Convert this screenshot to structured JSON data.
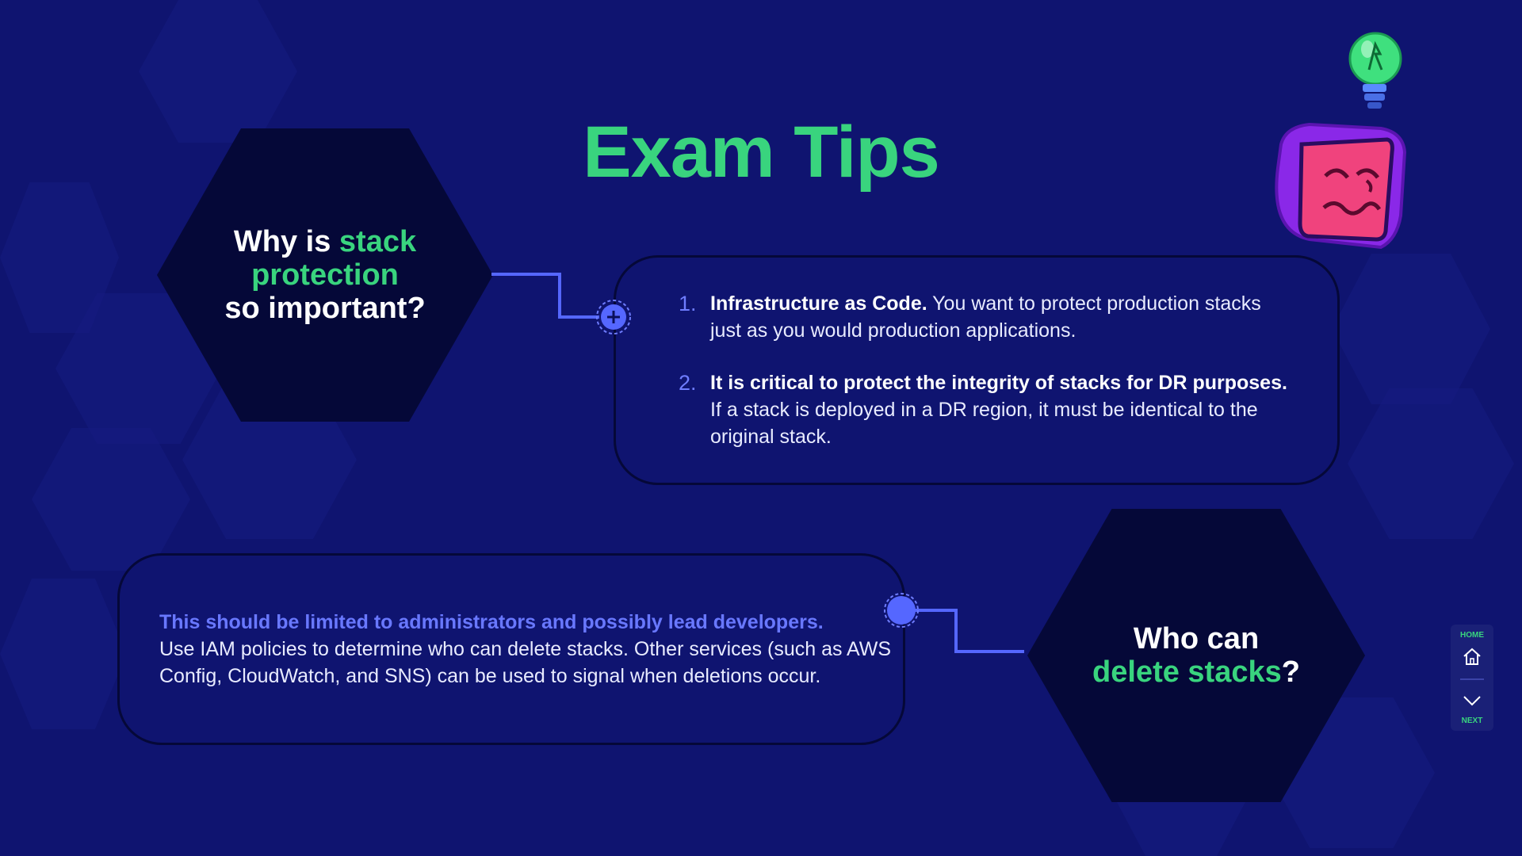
{
  "slide": {
    "title": "Exam Tips"
  },
  "question_1": {
    "line_1_prefix": "Why is ",
    "line_1_highlight": "stack",
    "line_2_highlight": "protection",
    "line_3": "so important?"
  },
  "answer_1": {
    "items": [
      {
        "number": "1.",
        "lead": "Infrastructure as Code.",
        "text": " You want to protect production stacks just as you would production applications."
      },
      {
        "number": "2.",
        "lead": "It is critical to protect the integrity of stacks for DR purposes.",
        "text": " If a stack is deployed in a DR region, it must be identical to the original stack."
      }
    ]
  },
  "question_2": {
    "line_1": "Who can",
    "line_2_highlight": "delete stacks",
    "line_2_suffix": "?"
  },
  "answer_2": {
    "lead": "This should be limited to administrators and possibly lead developers.",
    "text": "Use IAM policies to determine who can delete stacks. Other services (such as AWS Config, CloudWatch, and SNS) can be used to signal when deletions occur."
  },
  "nav": {
    "home_label": "HOME",
    "next_label": "NEXT",
    "home_icon": "home-icon",
    "next_icon": "chevron-down-icon"
  },
  "decorations": {
    "lightbulb_icon": "lightbulb-icon",
    "mascot_icon": "confused-monitor-icon"
  },
  "colors": {
    "background": "#0f1470",
    "accent_green": "#39d47e",
    "accent_blue": "#6978ff",
    "panel_dark": "#050838"
  }
}
